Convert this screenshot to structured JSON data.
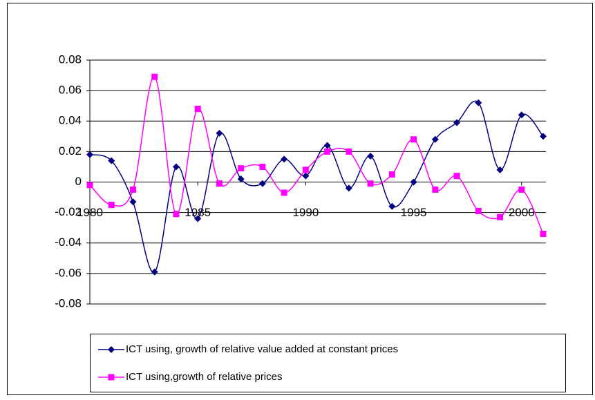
{
  "chart_data": {
    "type": "line",
    "smooth": true,
    "x": [
      1980,
      1981,
      1982,
      1983,
      1984,
      1985,
      1986,
      1987,
      1988,
      1989,
      1990,
      1991,
      1992,
      1993,
      1994,
      1995,
      1996,
      1997,
      1998,
      1999,
      2000,
      2001
    ],
    "xlim": [
      1980,
      2001
    ],
    "xticks": [
      1980,
      1985,
      1990,
      1995,
      2000
    ],
    "ylim": [
      -0.08,
      0.08
    ],
    "yticks": [
      0.08,
      0.06,
      0.04,
      0.02,
      0,
      -0.02,
      -0.04,
      -0.06,
      -0.08
    ],
    "grid": true,
    "legend": "bottom",
    "series": [
      {
        "name": "ICT using, growth of relative value added at constant prices",
        "color": "#000080",
        "marker": "diamond",
        "values": [
          0.018,
          0.014,
          -0.013,
          -0.059,
          0.01,
          -0.024,
          0.032,
          0.002,
          -0.001,
          0.015,
          0.004,
          0.024,
          -0.004,
          0.017,
          -0.016,
          0.0,
          0.028,
          0.039,
          0.052,
          0.008,
          0.044,
          0.03
        ]
      },
      {
        "name": "ICT using,growth of relative prices",
        "color": "#ff00ff",
        "marker": "square",
        "values": [
          -0.002,
          -0.015,
          -0.005,
          0.069,
          -0.021,
          0.048,
          -0.001,
          0.009,
          0.01,
          -0.007,
          0.008,
          0.02,
          0.02,
          -0.001,
          0.005,
          0.028,
          -0.005,
          0.004,
          -0.019,
          -0.023,
          -0.005,
          -0.034
        ]
      }
    ]
  }
}
